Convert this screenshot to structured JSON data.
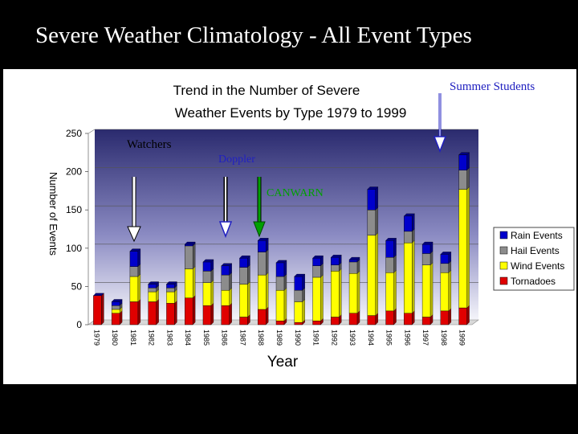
{
  "slide": {
    "title": "Severe Weather Climatology - All Event Types"
  },
  "annotations": {
    "summer_students": "Summer Students",
    "watchers": "Watchers",
    "doppler": "Doppler",
    "canwarn": "CANWARN"
  },
  "colors": {
    "tornadoes": "#e00000",
    "wind": "#ffff00",
    "hail": "#8c8c8c",
    "rain": "#0000cc",
    "canwarn_arrow": "#00a000",
    "doppler_arrow": "#2020c0",
    "watchers_arrow": "#ffffff",
    "summer_arrow": "#2020c0"
  },
  "chart_data": {
    "type": "bar",
    "stacked": true,
    "title_line1": "Trend in the Number of Severe",
    "title_line2": "Weather Events by Type 1979 to 1999",
    "xlabel": "Year",
    "ylabel": "Number of Events",
    "ylim": [
      0,
      250
    ],
    "yticks": [
      0,
      50,
      100,
      150,
      200,
      250
    ],
    "grid": true,
    "legend": "right",
    "categories": [
      "1979",
      "1980",
      "1981",
      "1982",
      "1983",
      "1984",
      "1985",
      "1986",
      "1987",
      "1988",
      "1989",
      "1990",
      "1991",
      "1992",
      "1993",
      "1994",
      "1995",
      "1996",
      "1997",
      "1998",
      "1999"
    ],
    "series": [
      {
        "name": "Tornadoes",
        "values": [
          38,
          15,
          30,
          30,
          28,
          35,
          25,
          25,
          10,
          20,
          5,
          3,
          5,
          10,
          15,
          12,
          18,
          15,
          10,
          18,
          22
        ]
      },
      {
        "name": "Wind Events",
        "values": [
          0,
          5,
          33,
          13,
          15,
          38,
          30,
          20,
          43,
          45,
          40,
          27,
          57,
          60,
          52,
          105,
          50,
          92,
          68,
          50,
          155
        ]
      },
      {
        "name": "Hail Events",
        "values": [
          0,
          5,
          13,
          5,
          5,
          30,
          15,
          20,
          22,
          30,
          18,
          15,
          15,
          8,
          15,
          33,
          20,
          15,
          15,
          12,
          25
        ]
      },
      {
        "name": "Rain Events",
        "values": [
          0,
          5,
          20,
          5,
          5,
          2,
          12,
          12,
          12,
          15,
          18,
          18,
          10,
          10,
          3,
          27,
          22,
          20,
          12,
          12,
          20
        ]
      }
    ]
  }
}
